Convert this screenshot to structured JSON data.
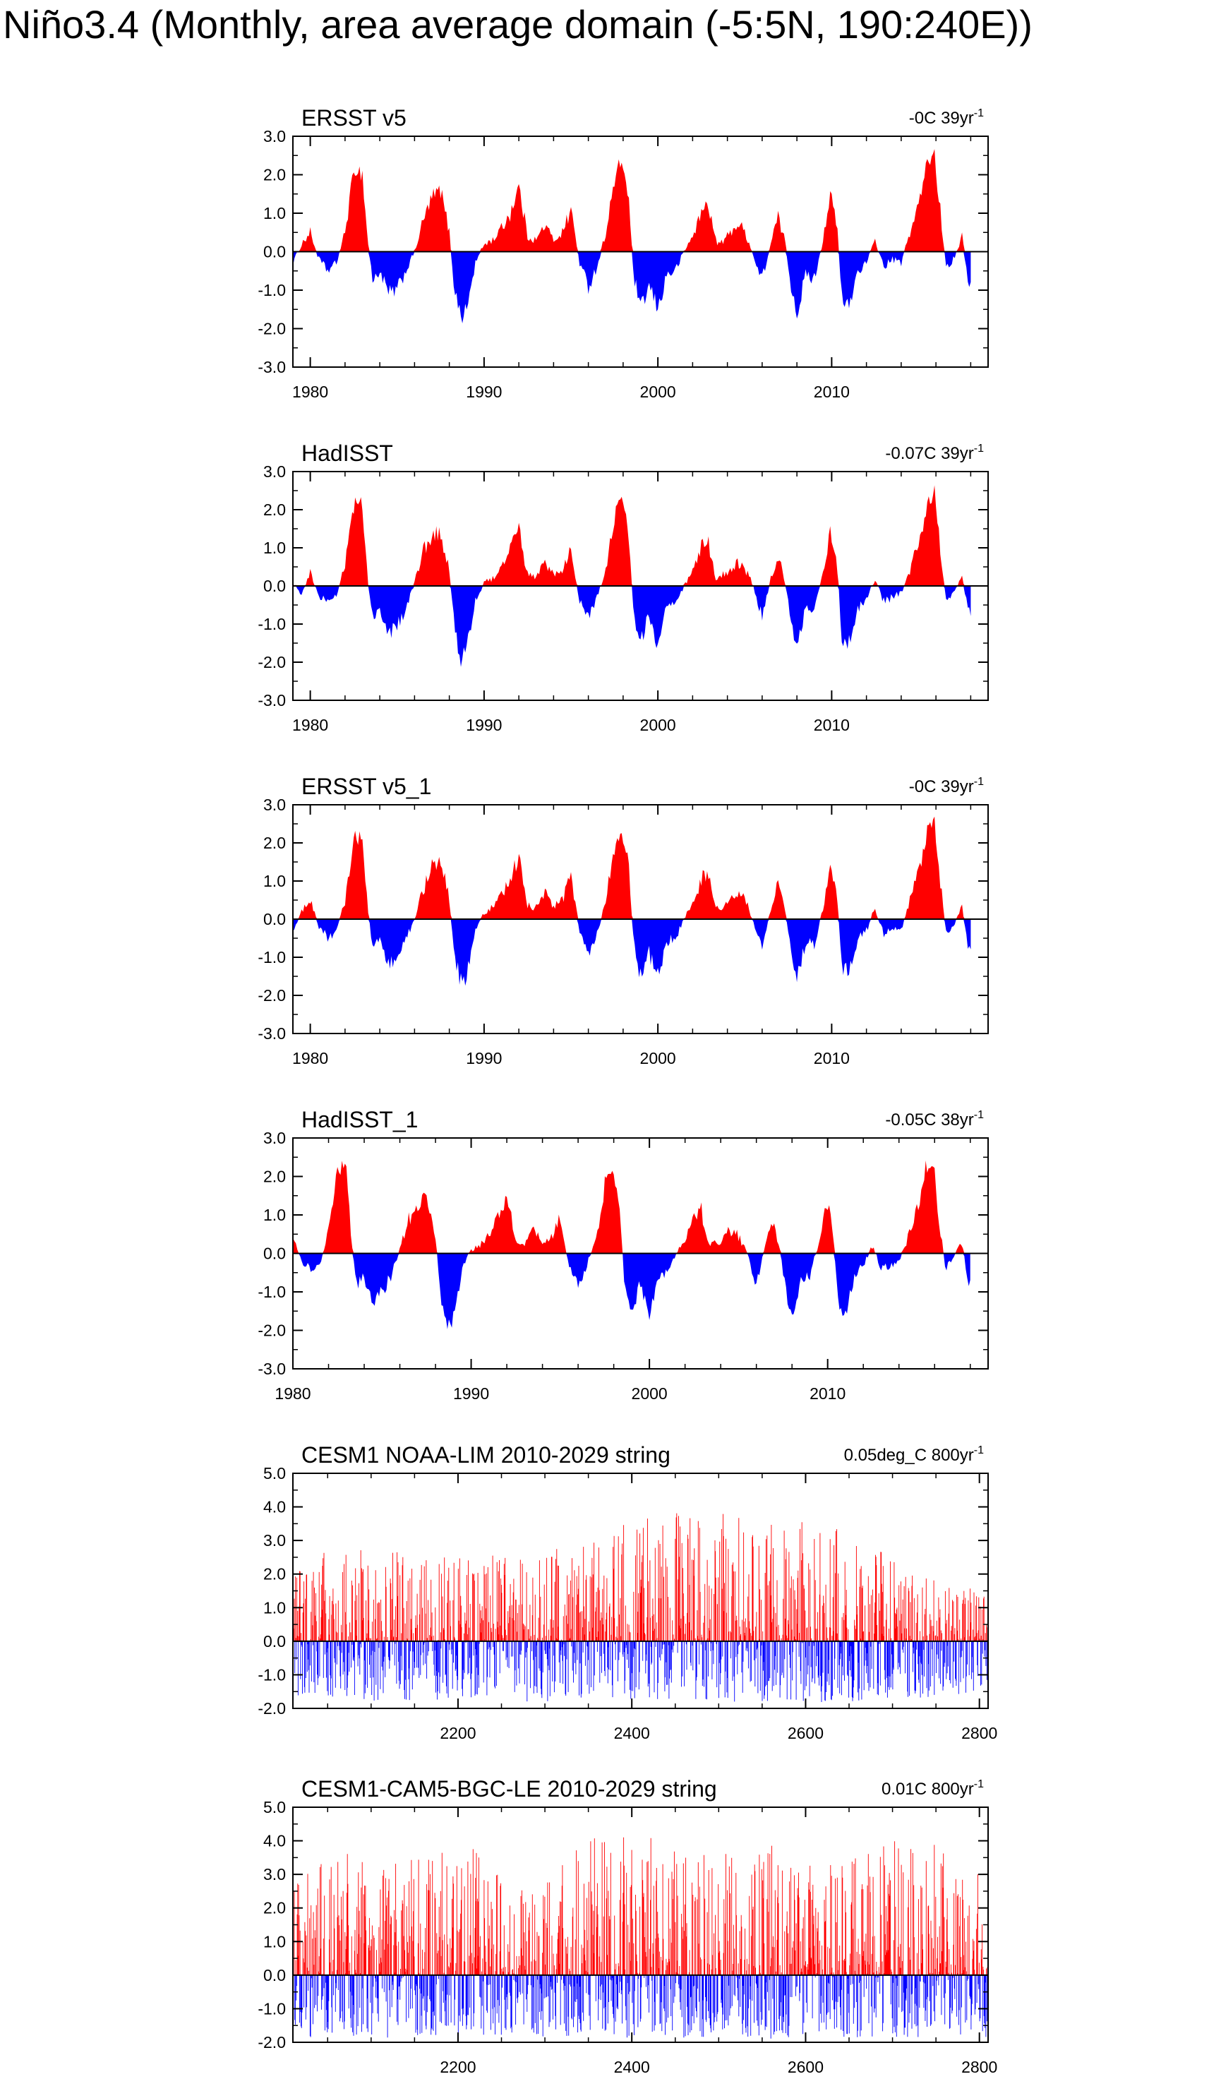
{
  "title": "Niño3.4 (Monthly, area average domain (-5:5N, 190:240E))",
  "colors": {
    "positive": "#ff0000",
    "negative": "#0000ff",
    "axis": "#000000",
    "zero_line": "#000000"
  },
  "chart_data": [
    {
      "type": "area",
      "title": "ERSST v5",
      "stats_value": "-0C 39yr",
      "stats_sup": "-1",
      "ylim": [
        -3.0,
        3.0
      ],
      "yticks": [
        -3.0,
        -2.0,
        -1.0,
        0.0,
        1.0,
        2.0,
        3.0
      ],
      "ytick_labels": [
        "-3.0",
        "-2.0",
        "-1.0",
        "0.0",
        "1.0",
        "2.0",
        "3.0"
      ],
      "xlim": [
        1979,
        2019
      ],
      "xticks": [
        1980,
        1990,
        2000,
        2010
      ],
      "xtick_labels": [
        "1980",
        "1990",
        "2000",
        "2010"
      ],
      "x": [
        1979.0,
        1979.5,
        1980.0,
        1980.5,
        1981.0,
        1981.5,
        1982.0,
        1982.3,
        1982.6,
        1983.0,
        1983.3,
        1983.6,
        1984.0,
        1984.5,
        1985.0,
        1985.5,
        1986.0,
        1986.5,
        1987.0,
        1987.5,
        1988.0,
        1988.3,
        1988.7,
        1989.0,
        1989.5,
        1990.0,
        1990.5,
        1991.0,
        1991.5,
        1992.0,
        1992.5,
        1993.0,
        1993.5,
        1994.0,
        1994.5,
        1995.0,
        1995.5,
        1996.0,
        1996.5,
        1997.0,
        1997.5,
        1997.9,
        1998.3,
        1998.6,
        1999.0,
        1999.5,
        2000.0,
        2000.5,
        2001.0,
        2001.5,
        2002.0,
        2002.5,
        2002.9,
        2003.3,
        2003.6,
        2004.0,
        2004.5,
        2004.9,
        2005.3,
        2005.6,
        2006.0,
        2006.5,
        2006.9,
        2007.3,
        2007.6,
        2008.0,
        2008.5,
        2009.0,
        2009.5,
        2009.9,
        2010.3,
        2010.6,
        2011.0,
        2011.5,
        2012.0,
        2012.5,
        2013.0,
        2013.5,
        2014.0,
        2014.5,
        2015.0,
        2015.5,
        2015.9,
        2016.3,
        2016.6,
        2017.0,
        2017.5,
        2017.8,
        2018.0
      ],
      "values": [
        -0.3,
        0.2,
        0.5,
        -0.2,
        -0.5,
        -0.3,
        0.5,
        1.5,
        2.2,
        2.0,
        0.3,
        -0.8,
        -0.5,
        -1.1,
        -1.0,
        -0.5,
        0.0,
        0.8,
        1.4,
        1.6,
        0.5,
        -1.0,
        -1.7,
        -1.5,
        -0.3,
        0.2,
        0.3,
        0.6,
        1.0,
        1.7,
        0.4,
        0.3,
        0.7,
        0.3,
        0.5,
        1.1,
        -0.3,
        -0.9,
        -0.4,
        0.5,
        1.8,
        2.4,
        1.5,
        -0.6,
        -1.5,
        -0.9,
        -1.5,
        -0.6,
        -0.5,
        0.0,
        0.4,
        1.0,
        1.3,
        0.3,
        0.2,
        0.4,
        0.7,
        0.6,
        0.2,
        -0.3,
        -0.7,
        0.2,
        0.9,
        0.3,
        -0.7,
        -1.6,
        -0.6,
        -0.7,
        0.3,
        1.5,
        0.7,
        -1.3,
        -1.4,
        -0.5,
        -0.3,
        0.3,
        -0.4,
        -0.2,
        -0.3,
        0.5,
        1.2,
        2.3,
        2.6,
        0.8,
        -0.4,
        -0.2,
        0.4,
        -0.6,
        -0.9
      ]
    },
    {
      "type": "area",
      "title": "HadISST",
      "stats_value": "-0.07C 39yr",
      "stats_sup": "-1",
      "ylim": [
        -3.0,
        3.0
      ],
      "yticks": [
        -3.0,
        -2.0,
        -1.0,
        0.0,
        1.0,
        2.0,
        3.0
      ],
      "ytick_labels": [
        "-3.0",
        "-2.0",
        "-1.0",
        "0.0",
        "1.0",
        "2.0",
        "3.0"
      ],
      "xlim": [
        1979,
        2019
      ],
      "xticks": [
        1980,
        1990,
        2000,
        2010
      ],
      "xtick_labels": [
        "1980",
        "1990",
        "2000",
        "2010"
      ],
      "x": [
        1979.0,
        1979.5,
        1980.0,
        1980.5,
        1981.0,
        1981.5,
        1982.0,
        1982.3,
        1982.6,
        1983.0,
        1983.3,
        1983.6,
        1984.0,
        1984.5,
        1985.0,
        1985.5,
        1986.0,
        1986.5,
        1987.0,
        1987.5,
        1988.0,
        1988.3,
        1988.7,
        1989.0,
        1989.5,
        1990.0,
        1990.5,
        1991.0,
        1991.5,
        1992.0,
        1992.5,
        1993.0,
        1993.5,
        1994.0,
        1994.5,
        1995.0,
        1995.5,
        1996.0,
        1996.5,
        1997.0,
        1997.5,
        1997.9,
        1998.3,
        1998.6,
        1999.0,
        1999.5,
        2000.0,
        2000.5,
        2001.0,
        2001.5,
        2002.0,
        2002.5,
        2002.9,
        2003.3,
        2003.6,
        2004.0,
        2004.5,
        2004.9,
        2005.3,
        2005.6,
        2006.0,
        2006.5,
        2006.9,
        2007.3,
        2007.6,
        2008.0,
        2008.5,
        2009.0,
        2009.5,
        2009.9,
        2010.3,
        2010.6,
        2011.0,
        2011.5,
        2012.0,
        2012.5,
        2013.0,
        2013.5,
        2014.0,
        2014.5,
        2015.0,
        2015.5,
        2015.9,
        2016.3,
        2016.6,
        2017.0,
        2017.5,
        2017.8,
        2018.0
      ],
      "values": [
        0.1,
        -0.2,
        0.4,
        -0.3,
        -0.4,
        -0.3,
        0.6,
        1.6,
        2.3,
        2.1,
        0.2,
        -0.9,
        -0.6,
        -1.3,
        -1.0,
        -0.6,
        0.1,
        0.9,
        1.3,
        1.4,
        0.4,
        -1.1,
        -2.0,
        -1.6,
        -0.4,
        0.1,
        0.2,
        0.5,
        0.9,
        1.5,
        0.3,
        0.2,
        0.6,
        0.3,
        0.4,
        1.0,
        -0.4,
        -0.8,
        -0.3,
        0.4,
        1.8,
        2.3,
        1.4,
        -0.7,
        -1.5,
        -0.8,
        -1.6,
        -0.6,
        -0.5,
        0.0,
        0.4,
        1.0,
        1.2,
        0.2,
        0.3,
        0.3,
        0.6,
        0.5,
        0.2,
        -0.2,
        -0.8,
        0.2,
        0.8,
        0.2,
        -0.8,
        -1.7,
        -0.6,
        -0.6,
        0.3,
        1.4,
        0.6,
        -1.4,
        -1.5,
        -0.6,
        -0.3,
        0.2,
        -0.4,
        -0.3,
        -0.2,
        0.4,
        1.1,
        2.2,
        2.5,
        0.7,
        -0.4,
        -0.2,
        0.3,
        -0.5,
        -0.9
      ]
    },
    {
      "type": "area",
      "title": "ERSST v5_1",
      "stats_value": "-0C 39yr",
      "stats_sup": "-1",
      "ylim": [
        -3.0,
        3.0
      ],
      "yticks": [
        -3.0,
        -2.0,
        -1.0,
        0.0,
        1.0,
        2.0,
        3.0
      ],
      "ytick_labels": [
        "-3.0",
        "-2.0",
        "-1.0",
        "0.0",
        "1.0",
        "2.0",
        "3.0"
      ],
      "xlim": [
        1979,
        2019
      ],
      "xticks": [
        1980,
        1990,
        2000,
        2010
      ],
      "xtick_labels": [
        "1980",
        "1990",
        "2000",
        "2010"
      ],
      "x": [
        1979.0,
        1979.5,
        1980.0,
        1980.5,
        1981.0,
        1981.5,
        1982.0,
        1982.3,
        1982.6,
        1983.0,
        1983.3,
        1983.6,
        1984.0,
        1984.5,
        1985.0,
        1985.5,
        1986.0,
        1986.5,
        1987.0,
        1987.5,
        1988.0,
        1988.3,
        1988.7,
        1989.0,
        1989.5,
        1990.0,
        1990.5,
        1991.0,
        1991.5,
        1992.0,
        1992.5,
        1993.0,
        1993.5,
        1994.0,
        1994.5,
        1995.0,
        1995.5,
        1996.0,
        1996.5,
        1997.0,
        1997.5,
        1997.9,
        1998.3,
        1998.6,
        1999.0,
        1999.5,
        2000.0,
        2000.5,
        2001.0,
        2001.5,
        2002.0,
        2002.5,
        2002.9,
        2003.3,
        2003.6,
        2004.0,
        2004.5,
        2004.9,
        2005.3,
        2005.6,
        2006.0,
        2006.5,
        2006.9,
        2007.3,
        2007.6,
        2008.0,
        2008.5,
        2009.0,
        2009.5,
        2009.9,
        2010.3,
        2010.6,
        2011.0,
        2011.5,
        2012.0,
        2012.5,
        2013.0,
        2013.5,
        2014.0,
        2014.5,
        2015.0,
        2015.5,
        2015.9,
        2016.3,
        2016.6,
        2017.0,
        2017.5,
        2017.8,
        2018.0
      ],
      "values": [
        -0.3,
        0.2,
        0.5,
        -0.2,
        -0.5,
        -0.3,
        0.5,
        1.5,
        2.2,
        2.0,
        0.3,
        -0.8,
        -0.5,
        -1.1,
        -1.0,
        -0.5,
        0.0,
        0.8,
        1.4,
        1.6,
        0.5,
        -1.0,
        -1.7,
        -1.5,
        -0.3,
        0.2,
        0.3,
        0.6,
        1.0,
        1.7,
        0.4,
        0.3,
        0.7,
        0.3,
        0.5,
        1.1,
        -0.3,
        -0.9,
        -0.4,
        0.5,
        1.8,
        2.4,
        1.5,
        -0.6,
        -1.5,
        -0.9,
        -1.5,
        -0.6,
        -0.5,
        0.0,
        0.4,
        1.0,
        1.3,
        0.3,
        0.2,
        0.4,
        0.7,
        0.6,
        0.2,
        -0.3,
        -0.7,
        0.2,
        0.9,
        0.3,
        -0.7,
        -1.6,
        -0.6,
        -0.7,
        0.3,
        1.5,
        0.7,
        -1.3,
        -1.4,
        -0.5,
        -0.3,
        0.3,
        -0.4,
        -0.2,
        -0.3,
        0.5,
        1.2,
        2.3,
        2.6,
        0.8,
        -0.4,
        -0.2,
        0.4,
        -0.6,
        -0.9
      ]
    },
    {
      "type": "area",
      "title": "HadISST_1",
      "stats_value": "-0.05C 38yr",
      "stats_sup": "-1",
      "ylim": [
        -3.0,
        3.0
      ],
      "yticks": [
        -3.0,
        -2.0,
        -1.0,
        0.0,
        1.0,
        2.0,
        3.0
      ],
      "ytick_labels": [
        "-3.0",
        "-2.0",
        "-1.0",
        "0.0",
        "1.0",
        "2.0",
        "3.0"
      ],
      "xlim": [
        1980,
        2019
      ],
      "xticks": [
        1980,
        1990,
        2000,
        2010
      ],
      "xtick_labels": [
        "1980",
        "1990",
        "2000",
        "2010"
      ],
      "x": [
        1980.0,
        1980.5,
        1981.0,
        1981.5,
        1982.0,
        1982.3,
        1982.6,
        1983.0,
        1983.3,
        1983.6,
        1984.0,
        1984.5,
        1985.0,
        1985.5,
        1986.0,
        1986.5,
        1987.0,
        1987.5,
        1988.0,
        1988.3,
        1988.7,
        1989.0,
        1989.5,
        1990.0,
        1990.5,
        1991.0,
        1991.5,
        1992.0,
        1992.5,
        1993.0,
        1993.5,
        1994.0,
        1994.5,
        1995.0,
        1995.5,
        1996.0,
        1996.5,
        1997.0,
        1997.5,
        1997.9,
        1998.3,
        1998.6,
        1999.0,
        1999.5,
        2000.0,
        2000.5,
        2001.0,
        2001.5,
        2002.0,
        2002.5,
        2002.9,
        2003.3,
        2003.6,
        2004.0,
        2004.5,
        2004.9,
        2005.3,
        2005.6,
        2006.0,
        2006.5,
        2006.9,
        2007.3,
        2007.6,
        2008.0,
        2008.5,
        2009.0,
        2009.5,
        2009.9,
        2010.3,
        2010.6,
        2011.0,
        2011.5,
        2012.0,
        2012.5,
        2013.0,
        2013.5,
        2014.0,
        2014.5,
        2015.0,
        2015.5,
        2015.9,
        2016.3,
        2016.6,
        2017.0,
        2017.5,
        2017.8,
        2018.0
      ],
      "values": [
        0.4,
        -0.2,
        -0.4,
        -0.3,
        0.6,
        1.6,
        2.3,
        2.1,
        0.2,
        -0.9,
        -0.6,
        -1.3,
        -1.0,
        -0.6,
        0.1,
        0.9,
        1.3,
        1.4,
        0.4,
        -1.1,
        -2.0,
        -1.6,
        -0.4,
        0.1,
        0.2,
        0.5,
        0.9,
        1.5,
        0.3,
        0.2,
        0.6,
        0.3,
        0.4,
        1.0,
        -0.4,
        -0.8,
        -0.3,
        0.4,
        1.8,
        2.3,
        1.4,
        -0.7,
        -1.5,
        -0.8,
        -1.6,
        -0.6,
        -0.5,
        0.0,
        0.4,
        1.0,
        1.2,
        0.2,
        0.3,
        0.3,
        0.6,
        0.5,
        0.2,
        -0.2,
        -0.8,
        0.2,
        0.8,
        0.2,
        -0.8,
        -1.7,
        -0.6,
        -0.6,
        0.3,
        1.4,
        0.6,
        -1.4,
        -1.5,
        -0.6,
        -0.3,
        0.2,
        -0.4,
        -0.3,
        -0.2,
        0.4,
        1.1,
        2.2,
        2.5,
        0.7,
        -0.4,
        -0.2,
        0.3,
        -0.5,
        -0.9
      ]
    },
    {
      "type": "area",
      "title": "CESM1 NOAA-LIM 2010-2029 string",
      "stats_value": "0.05deg_C 800yr",
      "stats_sup": "-1",
      "ylim": [
        -2.0,
        5.0
      ],
      "yticks": [
        -2.0,
        -1.0,
        0.0,
        1.0,
        2.0,
        3.0,
        4.0,
        5.0
      ],
      "ytick_labels": [
        "-2.0",
        "-1.0",
        "0.0",
        "1.0",
        "2.0",
        "3.0",
        "4.0",
        "5.0"
      ],
      "xlim": [
        2010,
        2810
      ],
      "xticks": [
        2200,
        2400,
        2600,
        2800
      ],
      "xtick_labels": [
        "2200",
        "2400",
        "2600",
        "2800"
      ],
      "envelope_x": [
        2010,
        2060,
        2110,
        2160,
        2210,
        2260,
        2310,
        2360,
        2410,
        2460,
        2510,
        2560,
        2610,
        2660,
        2710,
        2760,
        2810
      ],
      "envelope_max": [
        2.5,
        2.7,
        2.8,
        2.6,
        2.5,
        2.6,
        2.8,
        3.0,
        3.9,
        4.0,
        3.8,
        3.6,
        3.7,
        3.3,
        2.2,
        1.8,
        1.6
      ],
      "envelope_min": [
        -1.6,
        -1.7,
        -1.8,
        -1.8,
        -1.7,
        -1.8,
        -1.8,
        -1.8,
        -1.8,
        -1.8,
        -1.8,
        -1.8,
        -1.9,
        -1.8,
        -1.7,
        -1.7,
        -1.6
      ]
    },
    {
      "type": "area",
      "title": "CESM1-CAM5-BGC-LE 2010-2029 string",
      "stats_value": "0.01C 800yr",
      "stats_sup": "-1",
      "ylim": [
        -2.0,
        5.0
      ],
      "yticks": [
        -2.0,
        -1.0,
        0.0,
        1.0,
        2.0,
        3.0,
        4.0,
        5.0
      ],
      "ytick_labels": [
        "-2.0",
        "-1.0",
        "0.0",
        "1.0",
        "2.0",
        "3.0",
        "4.0",
        "5.0"
      ],
      "xlim": [
        2010,
        2810
      ],
      "xticks": [
        2200,
        2400,
        2600,
        2800
      ],
      "xtick_labels": [
        "2200",
        "2400",
        "2600",
        "2800"
      ],
      "envelope_x": [
        2010,
        2060,
        2110,
        2160,
        2210,
        2260,
        2310,
        2360,
        2410,
        2460,
        2510,
        2560,
        2610,
        2660,
        2710,
        2760,
        2810
      ],
      "envelope_max": [
        2.9,
        3.8,
        3.3,
        3.5,
        3.9,
        3.2,
        3.7,
        4.1,
        4.2,
        3.9,
        3.6,
        4.1,
        3.3,
        3.5,
        4.2,
        3.8,
        2.8
      ],
      "envelope_min": [
        -1.9,
        -1.8,
        -1.9,
        -1.8,
        -1.9,
        -1.8,
        -1.9,
        -1.8,
        -1.9,
        -1.9,
        -1.8,
        -1.9,
        -1.8,
        -1.9,
        -1.9,
        -1.8,
        -1.9
      ]
    }
  ]
}
